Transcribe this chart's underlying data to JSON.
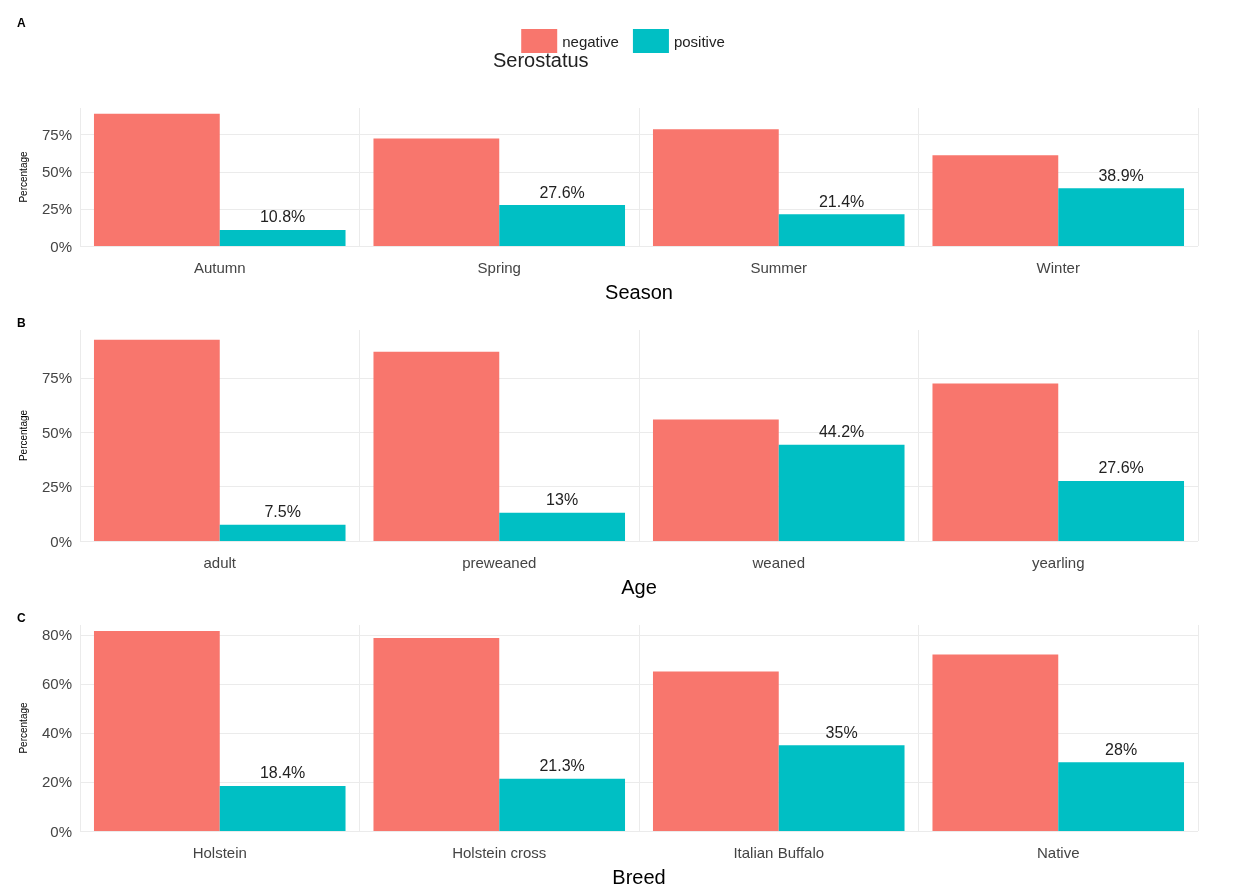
{
  "chart_data": [
    {
      "type": "bar",
      "title": "A",
      "xlabel": "Season",
      "ylabel": "Percentage",
      "legend_title": "Serostatus",
      "legend": "top",
      "grid": true,
      "categories": [
        "Autumn",
        "Spring",
        "Summer",
        "Winter"
      ],
      "ylim": [
        0,
        93
      ],
      "yticks": [
        {
          "value": 0,
          "label": "0%"
        },
        {
          "value": 25,
          "label": "25%"
        },
        {
          "value": 50,
          "label": "50%"
        },
        {
          "value": 75,
          "label": "75%"
        }
      ],
      "series": [
        {
          "name": "negative",
          "color": "#f8766d",
          "values": [
            89.2,
            72.4,
            78.6,
            61.1
          ]
        },
        {
          "name": "positive",
          "color": "#00bfc4",
          "values": [
            10.8,
            27.6,
            21.4,
            38.9
          ],
          "value_labels": [
            "10.8%",
            "27.6%",
            "21.4%",
            "38.9%"
          ]
        }
      ]
    },
    {
      "type": "bar",
      "title": "B",
      "xlabel": "Age",
      "ylabel": "Percentage",
      "grid": true,
      "categories": [
        "adult",
        "preweaned",
        "weaned",
        "yearling"
      ],
      "ylim": [
        0,
        97
      ],
      "yticks": [
        {
          "value": 0,
          "label": "0%"
        },
        {
          "value": 25,
          "label": "25%"
        },
        {
          "value": 50,
          "label": "50%"
        },
        {
          "value": 75,
          "label": "75%"
        }
      ],
      "series": [
        {
          "color": "#f8766d",
          "values": [
            92.5,
            87,
            55.8,
            72.4
          ]
        },
        {
          "color": "#00bfc4",
          "values": [
            7.5,
            13,
            44.2,
            27.6
          ],
          "value_labels": [
            "7.5%",
            "13%",
            "44.2%",
            "27.6%"
          ]
        }
      ]
    },
    {
      "type": "bar",
      "title": "C",
      "xlabel": "Breed",
      "ylabel": "Percentage",
      "grid": true,
      "categories": [
        "Holstein",
        "Holstein cross",
        "Italian Buffalo",
        "Native"
      ],
      "ylim": [
        0,
        84
      ],
      "yticks": [
        {
          "value": 0,
          "label": "0%"
        },
        {
          "value": 20,
          "label": "20%"
        },
        {
          "value": 40,
          "label": "40%"
        },
        {
          "value": 60,
          "label": "60%"
        },
        {
          "value": 80,
          "label": "80%"
        }
      ],
      "series": [
        {
          "color": "#f8766d",
          "values": [
            81.6,
            78.7,
            65,
            72
          ]
        },
        {
          "color": "#00bfc4",
          "values": [
            18.4,
            21.3,
            35,
            28
          ],
          "value_labels": [
            "18.4%",
            "21.3%",
            "35%",
            "28%"
          ]
        }
      ]
    }
  ]
}
